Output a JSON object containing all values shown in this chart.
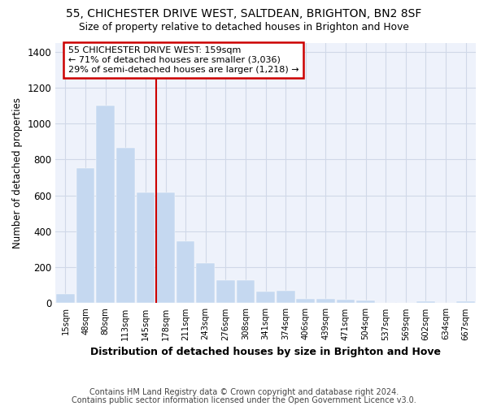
{
  "title_line1": "55, CHICHESTER DRIVE WEST, SALTDEAN, BRIGHTON, BN2 8SF",
  "title_line2": "Size of property relative to detached houses in Brighton and Hove",
  "xlabel": "Distribution of detached houses by size in Brighton and Hove",
  "ylabel": "Number of detached properties",
  "footnote_line1": "Contains HM Land Registry data © Crown copyright and database right 2024.",
  "footnote_line2": "Contains public sector information licensed under the Open Government Licence v3.0.",
  "categories": [
    "15sqm",
    "48sqm",
    "80sqm",
    "113sqm",
    "145sqm",
    "178sqm",
    "211sqm",
    "243sqm",
    "276sqm",
    "308sqm",
    "341sqm",
    "374sqm",
    "406sqm",
    "439sqm",
    "471sqm",
    "504sqm",
    "537sqm",
    "569sqm",
    "602sqm",
    "634sqm",
    "667sqm"
  ],
  "values": [
    50,
    750,
    1100,
    865,
    615,
    615,
    345,
    225,
    130,
    130,
    65,
    70,
    25,
    25,
    18,
    14,
    0,
    0,
    10,
    0,
    10
  ],
  "bar_color": "#c5d8f0",
  "bar_edge_color": "#c5d8f0",
  "grid_color": "#d0d8e8",
  "bg_color": "#eef2fb",
  "annotation_line1": "55 CHICHESTER DRIVE WEST: 159sqm",
  "annotation_line2": "← 71% of detached houses are smaller (3,036)",
  "annotation_line3": "29% of semi-detached houses are larger (1,218) →",
  "vline_x": 4.55,
  "vline_color": "#cc0000",
  "annotation_box_edgecolor": "#cc0000",
  "ylim": [
    0,
    1450
  ],
  "yticks": [
    0,
    200,
    400,
    600,
    800,
    1000,
    1200,
    1400
  ]
}
